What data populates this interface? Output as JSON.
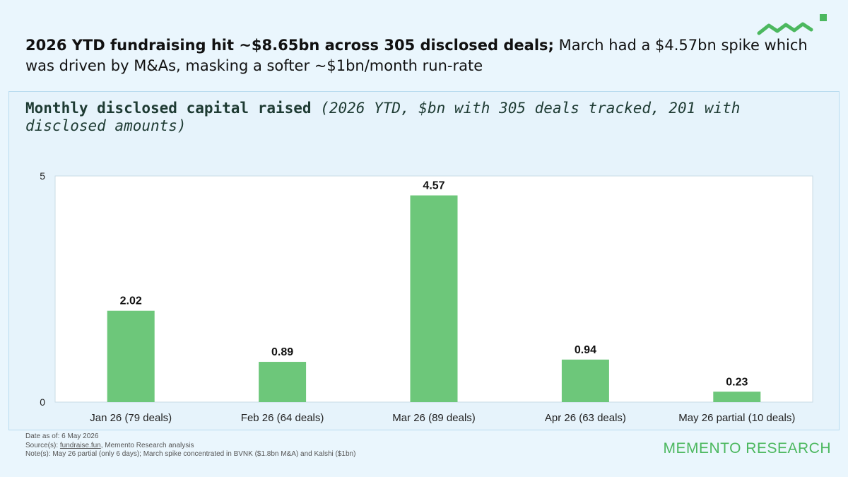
{
  "headline": {
    "bold": "2026 YTD fundraising hit ~$8.65bn across 305 disclosed deals;",
    "rest": " March had a $4.57bn spike which was driven by M&As, masking a softer ~$1bn/month run-rate"
  },
  "chart_title": {
    "bold": "Monthly disclosed capital raised",
    "sub": " (2026 YTD, $bn with 305 deals tracked, 201 with disclosed amounts)"
  },
  "chart_data": {
    "type": "bar",
    "categories": [
      "Jan 26 (79 deals)",
      "Feb 26 (64 deals)",
      "Mar 26 (89 deals)",
      "Apr 26 (63 deals)",
      "May 26 partial (10 deals)"
    ],
    "values": [
      2.02,
      0.89,
      4.57,
      0.94,
      0.23
    ],
    "value_labels": [
      "2.02",
      "0.89",
      "4.57",
      "0.94",
      "0.23"
    ],
    "yticks": [
      "0",
      "5"
    ],
    "ylim": [
      0,
      5
    ],
    "grid": false,
    "bar_color": "#6dc77a"
  },
  "footnotes": {
    "date": "Date as of: 6 May 2026",
    "source_prefix": "Source(s): ",
    "source_link": "fundraise.fun",
    "source_rest": ", Memento Research analysis",
    "note": "Note(s): May 26 partial (only 6 days); March spike concentrated in BVNK ($1.8bn M&A) and Kalshi ($1bn)"
  },
  "brand": "MEMENTO RESEARCH",
  "colors": {
    "accent": "#4cb85f",
    "background": "#eaf6fd",
    "panel_border": "#b9dcef"
  }
}
